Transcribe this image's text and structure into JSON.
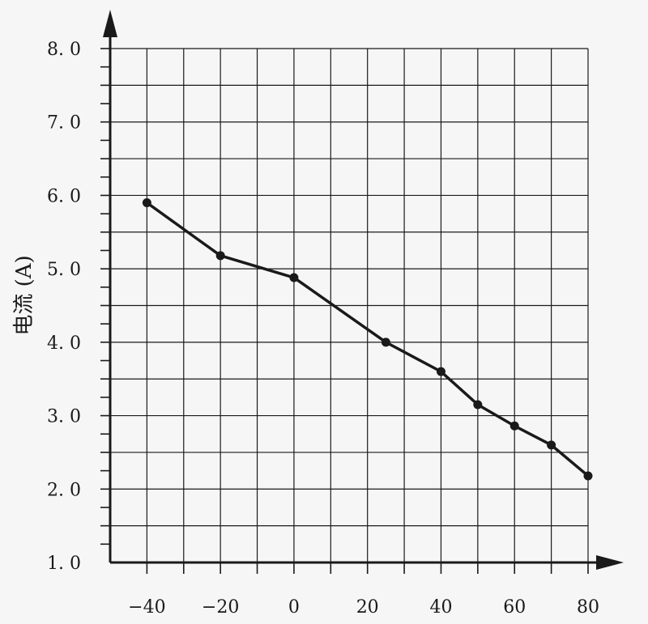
{
  "chart_data": {
    "type": "line",
    "title": "",
    "xlabel": "",
    "ylabel": "电流 (A)",
    "xlim": [
      -50,
      80
    ],
    "ylim": [
      1.0,
      8.0
    ],
    "x_ticks": [
      -40,
      -20,
      0,
      20,
      40,
      60,
      80
    ],
    "x_tick_labels": [
      "−40",
      "−20",
      "0",
      "20",
      "40",
      "60",
      "80"
    ],
    "x_grid_step": 10,
    "y_ticks": [
      1.0,
      2.0,
      3.0,
      4.0,
      5.0,
      6.0,
      7.0,
      8.0
    ],
    "y_tick_labels": [
      "1. 0",
      "2. 0",
      "3. 0",
      "4. 0",
      "5. 0",
      "6. 0",
      "7. 0",
      "8. 0"
    ],
    "y_grid_step": 0.5,
    "y_minor_step": 0.25,
    "grid": true,
    "legend": false,
    "series": [
      {
        "x": [
          -40,
          -20,
          0,
          25,
          40,
          50,
          60,
          70,
          80
        ],
        "y": [
          5.9,
          5.18,
          4.88,
          4.0,
          3.6,
          3.15,
          2.86,
          2.6,
          2.18
        ],
        "color": "#1a1a1a",
        "marker": "circle"
      }
    ]
  }
}
